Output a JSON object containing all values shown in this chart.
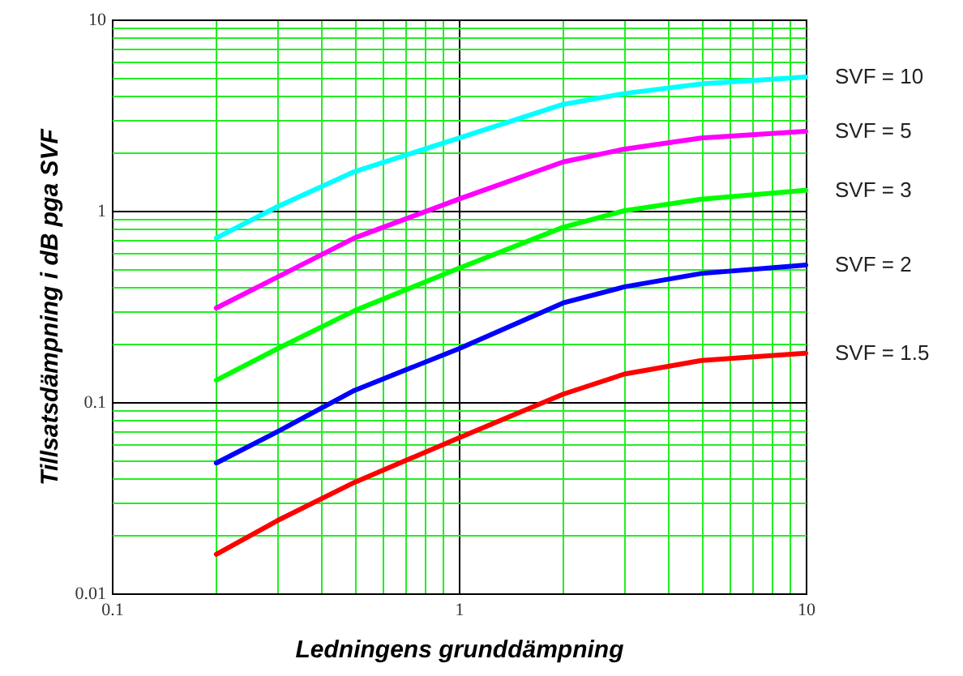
{
  "chart_data": {
    "type": "line",
    "xlabel": "Ledningens grunddämpning",
    "ylabel": "Tillsatsdämpning i dB pga SVF",
    "log": "xy",
    "grid": true,
    "legend": false,
    "marker": "none",
    "line_style": "solid",
    "xlim": [
      0.1,
      10
    ],
    "ylim": [
      0.01,
      10
    ],
    "xticks": [
      0.1,
      {
        "value": 0.2,
        "label": null
      },
      {
        "value": 0.3,
        "label": null
      },
      {
        "value": 0.4,
        "label": null
      },
      {
        "value": 0.5,
        "label": null
      },
      {
        "value": 0.6,
        "label": null
      },
      {
        "value": 0.7,
        "label": null
      },
      {
        "value": 0.8,
        "label": null
      },
      {
        "value": 0.9,
        "label": null
      },
      1,
      {
        "value": 2,
        "label": null
      },
      {
        "value": 3,
        "label": null
      },
      {
        "value": 4,
        "label": null
      },
      {
        "value": 5,
        "label": null
      },
      {
        "value": 6,
        "label": null
      },
      {
        "value": 7,
        "label": null
      },
      {
        "value": 8,
        "label": null
      },
      {
        "value": 9,
        "label": null
      },
      10
    ],
    "yticks": [
      0.01,
      {
        "value": 0.02,
        "label": null
      },
      {
        "value": 0.03,
        "label": null
      },
      {
        "value": 0.04,
        "label": null
      },
      {
        "value": 0.05,
        "label": null
      },
      {
        "value": 0.06,
        "label": null
      },
      {
        "value": 0.07,
        "label": null
      },
      {
        "value": 0.08,
        "label": null
      },
      {
        "value": 0.09,
        "label": null
      },
      0.1,
      {
        "value": 0.2,
        "label": null
      },
      {
        "value": 0.3,
        "label": null
      },
      {
        "value": 0.4,
        "label": null
      },
      {
        "value": 0.5,
        "label": null
      },
      {
        "value": 0.6,
        "label": null
      },
      {
        "value": 0.7,
        "label": null
      },
      {
        "value": 0.8,
        "label": null
      },
      {
        "value": 0.9,
        "label": null
      },
      1,
      {
        "value": 2,
        "label": null
      },
      {
        "value": 3,
        "label": null
      },
      {
        "value": 4,
        "label": null
      },
      {
        "value": 5,
        "label": null
      },
      {
        "value": 6,
        "label": null
      },
      {
        "value": 7,
        "label": null
      },
      {
        "value": 8,
        "label": null
      },
      {
        "value": 9,
        "label": null
      },
      10
    ],
    "x": [
      0.2,
      0.3,
      0.5,
      1,
      2,
      3,
      5,
      10
    ],
    "series": [
      {
        "name": "SVF = 10",
        "color": "#00ffff",
        "values": [
          0.72,
          1.05,
          1.6,
          2.4,
          3.6,
          4.1,
          4.6,
          5.0
        ]
      },
      {
        "name": "SVF =  5",
        "color": "#ff00ff",
        "values": [
          0.31,
          0.45,
          0.72,
          1.15,
          1.8,
          2.1,
          2.4,
          2.6
        ]
      },
      {
        "name": "SVF =  3",
        "color": "#00ff00",
        "values": [
          0.13,
          0.19,
          0.3,
          0.5,
          0.82,
          1.0,
          1.15,
          1.28
        ]
      },
      {
        "name": "SVF =  2",
        "color": "#0000ff",
        "values": [
          0.048,
          0.07,
          0.115,
          0.19,
          0.33,
          0.4,
          0.47,
          0.52
        ]
      },
      {
        "name": "SVF = 1.5",
        "color": "#ff0000",
        "values": [
          0.016,
          0.024,
          0.038,
          0.065,
          0.11,
          0.14,
          0.165,
          0.18
        ]
      }
    ]
  }
}
